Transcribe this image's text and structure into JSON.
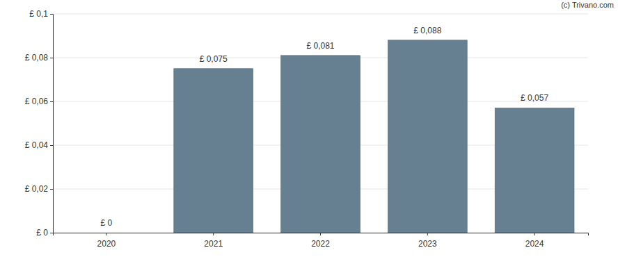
{
  "chart_data": {
    "type": "bar",
    "categories": [
      "2020",
      "2021",
      "2022",
      "2023",
      "2024"
    ],
    "values": [
      0,
      0.075,
      0.081,
      0.088,
      0.057
    ],
    "value_labels": [
      "£ 0",
      "£ 0,075",
      "£ 0,081",
      "£ 0,088",
      "£ 0,057"
    ],
    "data_labels": true,
    "color": "#667f91",
    "ylim": [
      0,
      0.1
    ],
    "yticks": [
      {
        "value": 0,
        "label": "£ 0"
      },
      {
        "value": 0.02,
        "label": "£ 0,02"
      },
      {
        "value": 0.04,
        "label": "£ 0,04"
      },
      {
        "value": 0.06,
        "label": "£ 0,06"
      },
      {
        "value": 0.08,
        "label": "£ 0,08"
      },
      {
        "value": 0.1,
        "label": "£ 0,1"
      }
    ],
    "grid": true,
    "annotations": [
      "(c) Trivano.com"
    ]
  }
}
